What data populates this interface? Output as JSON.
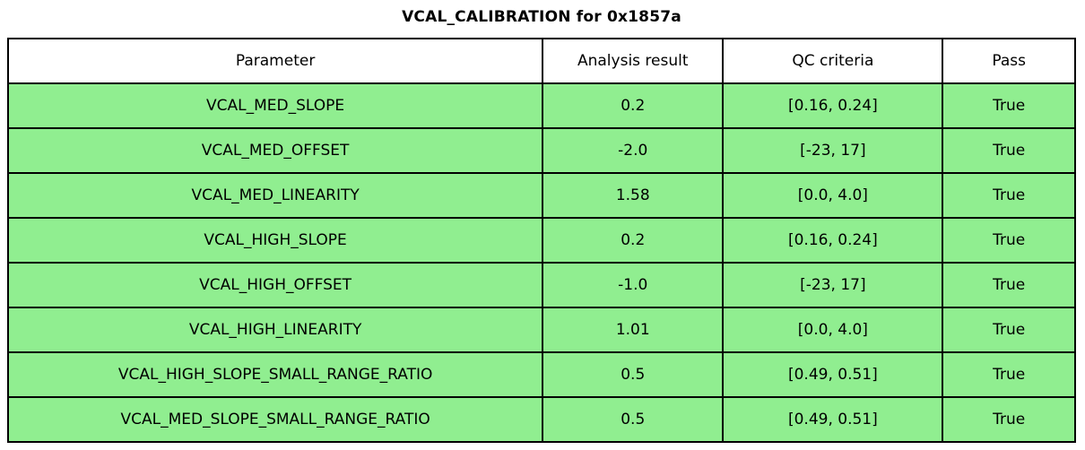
{
  "title": "VCAL_CALIBRATION for 0x1857a",
  "colors": {
    "row_background": "#90EE90",
    "header_background": "#FFFFFF",
    "border": "#000000",
    "text": "#000000"
  },
  "table": {
    "headers": [
      "Parameter",
      "Analysis result",
      "QC criteria",
      "Pass"
    ],
    "rows": [
      {
        "parameter": "VCAL_MED_SLOPE",
        "result": "0.2",
        "criteria": "[0.16, 0.24]",
        "pass": "True"
      },
      {
        "parameter": "VCAL_MED_OFFSET",
        "result": "-2.0",
        "criteria": "[-23, 17]",
        "pass": "True"
      },
      {
        "parameter": "VCAL_MED_LINEARITY",
        "result": "1.58",
        "criteria": "[0.0, 4.0]",
        "pass": "True"
      },
      {
        "parameter": "VCAL_HIGH_SLOPE",
        "result": "0.2",
        "criteria": "[0.16, 0.24]",
        "pass": "True"
      },
      {
        "parameter": "VCAL_HIGH_OFFSET",
        "result": "-1.0",
        "criteria": "[-23, 17]",
        "pass": "True"
      },
      {
        "parameter": "VCAL_HIGH_LINEARITY",
        "result": "1.01",
        "criteria": "[0.0, 4.0]",
        "pass": "True"
      },
      {
        "parameter": "VCAL_HIGH_SLOPE_SMALL_RANGE_RATIO",
        "result": "0.5",
        "criteria": "[0.49, 0.51]",
        "pass": "True"
      },
      {
        "parameter": "VCAL_MED_SLOPE_SMALL_RANGE_RATIO",
        "result": "0.5",
        "criteria": "[0.49, 0.51]",
        "pass": "True"
      }
    ]
  },
  "chart_data": {
    "type": "table",
    "title": "VCAL_CALIBRATION for 0x1857a",
    "columns": [
      "Parameter",
      "Analysis result",
      "QC criteria",
      "Pass"
    ],
    "rows": [
      [
        "VCAL_MED_SLOPE",
        "0.2",
        "[0.16, 0.24]",
        "True"
      ],
      [
        "VCAL_MED_OFFSET",
        "-2.0",
        "[-23, 17]",
        "True"
      ],
      [
        "VCAL_MED_LINEARITY",
        "1.58",
        "[0.0, 4.0]",
        "True"
      ],
      [
        "VCAL_HIGH_SLOPE",
        "0.2",
        "[0.16, 0.24]",
        "True"
      ],
      [
        "VCAL_HIGH_OFFSET",
        "-1.0",
        "[-23, 17]",
        "True"
      ],
      [
        "VCAL_HIGH_LINEARITY",
        "1.01",
        "[0.0, 4.0]",
        "True"
      ],
      [
        "VCAL_HIGH_SLOPE_SMALL_RANGE_RATIO",
        "0.5",
        "[0.49, 0.51]",
        "True"
      ],
      [
        "VCAL_MED_SLOPE_SMALL_RANGE_RATIO",
        "0.5",
        "[0.49, 0.51]",
        "True"
      ]
    ],
    "layout_hints": {
      "row_fill": "lightgreen",
      "header_fill": "white",
      "title_bold": true,
      "all_rows_pass": true
    }
  }
}
